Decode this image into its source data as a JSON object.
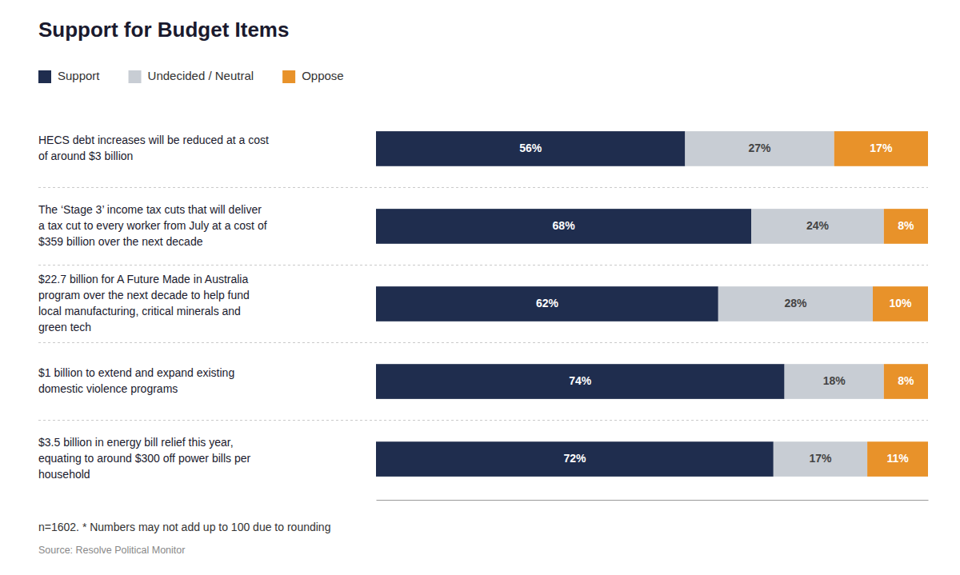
{
  "chart_data": {
    "type": "bar",
    "orientation": "horizontal",
    "stacked": true,
    "data_labels": true,
    "tick_labels": false,
    "grid": false,
    "legend": "top-left",
    "title": "Support for Budget Items",
    "categories": [
      "HECS debt increases will be reduced at a cost\nof around $3 billion",
      "The ‘Stage 3’ income tax cuts that will deliver\na tax cut to every worker from July at a cost of\n$359 billion over the next decade",
      "$22.7 billion for A Future Made in Australia\nprogram over the next decade to help fund\nlocal manufacturing, critical minerals and\ngreen tech",
      "$1 billion to extend and expand existing\ndomestic violence programs",
      "$3.5 billion in energy bill relief this year,\nequating to around $300 off power bills per\nhousehold"
    ],
    "series": [
      {
        "name": "Support",
        "color": "#1f2d4e",
        "values": [
          56,
          68,
          62,
          74,
          72
        ],
        "value_labels": [
          "56%",
          "68%",
          "62%",
          "74%",
          "72%"
        ]
      },
      {
        "name": "Undecided / Neutral",
        "color": "#c8cdd4",
        "values": [
          27,
          24,
          28,
          18,
          17
        ],
        "value_labels": [
          "27%",
          "24%",
          "28%",
          "18%",
          "17%"
        ]
      },
      {
        "name": "Oppose",
        "color": "#e8922a",
        "values": [
          17,
          8,
          10,
          8,
          11
        ],
        "value_labels": [
          "17%",
          "8%",
          "10%",
          "8%",
          "11%"
        ]
      }
    ],
    "xlim": [
      0,
      100
    ],
    "annotations": [
      "n=1602. * Numbers may not add up to 100 due to rounding",
      "Source: Resolve Political Monitor"
    ]
  }
}
